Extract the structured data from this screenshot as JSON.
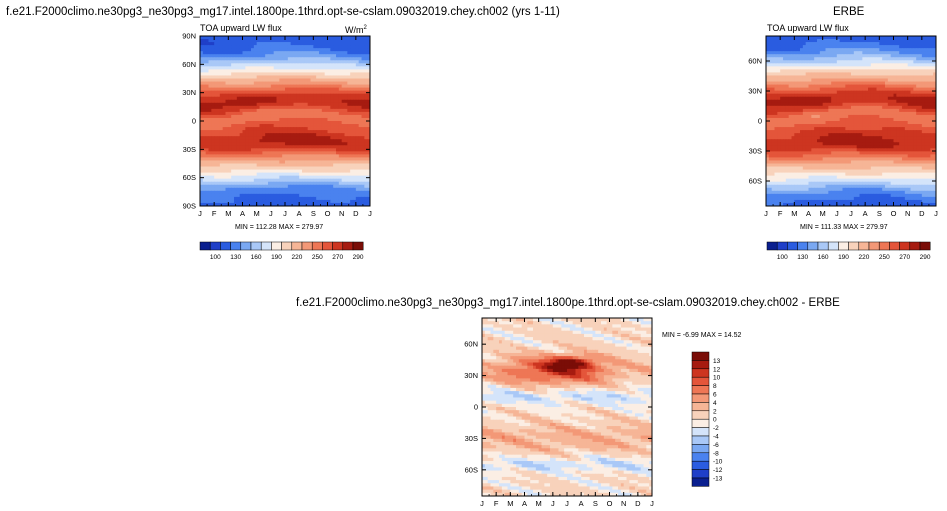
{
  "page": {
    "title_left": "f.e21.F2000climo.ne30pg3_ne30pg3_mg17.intel.1800pe.1thrd.opt-se-cslam.09032019.chey.ch002 (yrs 1-11)",
    "title_right": "ERBE",
    "title_diff": "f.e21.F2000climo.ne30pg3_ne30pg3_mg17.intel.1800pe.1thrd.opt-se-cslam.09032019.chey.ch002 - ERBE"
  },
  "chart_data": [
    {
      "type": "heatmap",
      "name": "model",
      "subtitle_left": "TOA upward LW flux",
      "subtitle_right": "W/m",
      "subtitle_right_sup": "2",
      "x_ticks": [
        "J",
        "F",
        "M",
        "A",
        "M",
        "J",
        "J",
        "A",
        "S",
        "O",
        "N",
        "D",
        "J"
      ],
      "y_ticks": [
        "90N",
        "60N",
        "30N",
        "0",
        "30S",
        "60S",
        "90S"
      ],
      "stats": "MIN = 112.28 MAX = 279.97",
      "colorbar_labels": [
        "100",
        "130",
        "160",
        "190",
        "220",
        "250",
        "270",
        "290"
      ],
      "min": 112.28,
      "max": 279.97
    },
    {
      "type": "heatmap",
      "name": "erbe",
      "subtitle_left": "TOA upward LW flux",
      "x_ticks": [
        "J",
        "F",
        "M",
        "A",
        "M",
        "J",
        "J",
        "A",
        "S",
        "O",
        "N",
        "D",
        "J"
      ],
      "y_ticks": [
        "60N",
        "30N",
        "0",
        "30S",
        "60S"
      ],
      "stats": "MIN = 111.33 MAX = 279.97",
      "colorbar_labels": [
        "100",
        "130",
        "160",
        "190",
        "220",
        "250",
        "270",
        "290"
      ],
      "min": 111.33,
      "max": 279.97
    },
    {
      "type": "heatmap",
      "name": "difference",
      "x_ticks": [
        "J",
        "F",
        "M",
        "A",
        "M",
        "J",
        "J",
        "A",
        "S",
        "O",
        "N",
        "D",
        "J"
      ],
      "y_ticks": [
        "60N",
        "30N",
        "0",
        "30S",
        "60S"
      ],
      "stats": "MIN =  -6.99 MAX =  14.52",
      "colorbar_labels": [
        "13",
        "12",
        "10",
        "8",
        "6",
        "4",
        "2",
        "0",
        "-2",
        "-4",
        "-6",
        "-8",
        "-10",
        "-12",
        "-13"
      ],
      "min": -6.99,
      "max": 14.52
    }
  ],
  "colors": {
    "flux_scale": [
      "#0a1f8f",
      "#1f3fc8",
      "#2a5ce0",
      "#4a82ef",
      "#7aa8f2",
      "#a9c8f7",
      "#d4e4fa",
      "#fbeee4",
      "#f8d2bb",
      "#f6b596",
      "#f39877",
      "#ee7655",
      "#e4553a",
      "#cd3520",
      "#a61b10",
      "#7a0d07"
    ],
    "diff_scale": [
      "#7a0d07",
      "#a61b10",
      "#cd3520",
      "#e4553a",
      "#ee7655",
      "#f39877",
      "#f6b596",
      "#f8d2bb",
      "#fbeee4",
      "#d4e4fa",
      "#a9c8f7",
      "#7aa8f2",
      "#4a82ef",
      "#2a5ce0",
      "#1f3fc8",
      "#0a1f8f"
    ]
  }
}
